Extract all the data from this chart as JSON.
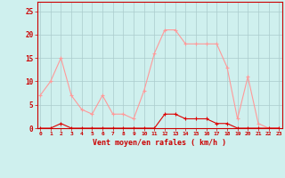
{
  "x": [
    0,
    1,
    2,
    3,
    4,
    5,
    6,
    7,
    8,
    9,
    10,
    11,
    12,
    13,
    14,
    15,
    16,
    17,
    18,
    19,
    20,
    21,
    22,
    23
  ],
  "rafales": [
    7,
    10,
    15,
    7,
    4,
    3,
    7,
    3,
    3,
    2,
    8,
    16,
    21,
    21,
    18,
    18,
    18,
    18,
    13,
    2,
    11,
    1,
    0,
    0
  ],
  "moyen": [
    0,
    0,
    1,
    0,
    0,
    0,
    0,
    0,
    0,
    0,
    0,
    0,
    3,
    3,
    2,
    2,
    2,
    1,
    1,
    0,
    0,
    0,
    0,
    0
  ],
  "bg_color": "#cff0ee",
  "grid_color": "#aacccc",
  "line_color_rafales": "#ff9999",
  "line_color_moyen": "#dd0000",
  "xlabel": "Vent moyen/en rafales ( km/h )",
  "ylabel_ticks": [
    0,
    5,
    10,
    15,
    20,
    25
  ],
  "ylim": [
    0,
    27
  ],
  "xlim": [
    -0.3,
    23.3
  ],
  "figwidth": 3.2,
  "figheight": 2.0,
  "dpi": 100
}
